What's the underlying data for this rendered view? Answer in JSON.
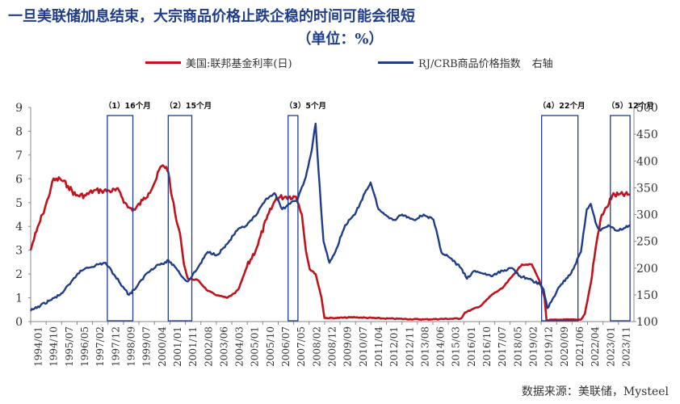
{
  "chart_data": {
    "type": "line",
    "title": "一旦美联储加息结束，大宗商品价格止跌企稳的时间可能会很短",
    "subtitle": "（单位：%）",
    "source": "数据来源：美联储，Mysteel",
    "x_tick_labels": [
      "1994/01",
      "1994/10",
      "1995/07",
      "1996/05",
      "1997/02",
      "1997/12",
      "1998/09",
      "1999/07",
      "2000/04",
      "2001/01",
      "2001/11",
      "2002/08",
      "2003/06",
      "2004/03",
      "2005/01",
      "2005/10",
      "2006/07",
      "2007/05",
      "2008/02",
      "2008/12",
      "2009/09",
      "2010/07",
      "2011/04",
      "2012/01",
      "2012/11",
      "2013/08",
      "2014/06",
      "2015/03",
      "2016/01",
      "2016/10",
      "2017/07",
      "2018/05",
      "2019/02",
      "2019/12",
      "2020/09",
      "2021/06",
      "2022/04",
      "2023/01",
      "2023/11"
    ],
    "y_left": {
      "label": "",
      "ylim": [
        0,
        9
      ],
      "ticks": [
        0,
        1,
        2,
        3,
        4,
        5,
        6,
        7,
        8,
        9
      ]
    },
    "y_right": {
      "label": "右轴",
      "ylim": [
        100,
        500
      ],
      "ticks": [
        100,
        150,
        200,
        250,
        300,
        350,
        400,
        450,
        500
      ]
    },
    "grid": false,
    "legend_position": "top",
    "series": [
      {
        "name": "美国:联邦基金利率(日)",
        "color": "#c0131c",
        "axis": "left",
        "x": [
          1994.0,
          1994.1,
          1994.3,
          1994.6,
          1994.9,
          1995.1,
          1995.5,
          1995.9,
          1996.3,
          1996.8,
          1997.2,
          1997.6,
          1998.0,
          1998.5,
          1998.8,
          1998.95,
          1999.3,
          1999.7,
          2000.0,
          2000.4,
          2000.6,
          2000.9,
          2001.0,
          2001.2,
          2001.4,
          2001.6,
          2001.8,
          2002.0,
          2002.5,
          2003.0,
          2003.5,
          2004.0,
          2004.4,
          2004.6,
          2005.0,
          2005.5,
          2006.0,
          2006.5,
          2007.0,
          2007.5,
          2007.65,
          2007.8,
          2008.0,
          2008.2,
          2008.5,
          2008.8,
          2008.95,
          2009.5,
          2010.5,
          2012.0,
          2014.0,
          2015.9,
          2016.1,
          2016.9,
          2017.5,
          2018.0,
          2018.5,
          2019.0,
          2019.5,
          2019.7,
          2019.95,
          2020.15,
          2020.25,
          2021.0,
          2022.0,
          2022.2,
          2022.5,
          2022.75,
          2023.0,
          2023.3,
          2023.6,
          2023.9,
          2024.5
        ],
        "y": [
          3.0,
          3.3,
          3.8,
          4.5,
          5.2,
          5.9,
          6.0,
          5.7,
          5.3,
          5.3,
          5.5,
          5.5,
          5.5,
          5.5,
          5.0,
          4.8,
          4.7,
          5.1,
          5.4,
          6.0,
          6.5,
          6.5,
          6.3,
          5.2,
          4.3,
          3.7,
          2.4,
          1.8,
          1.75,
          1.3,
          1.1,
          1.0,
          1.2,
          1.4,
          2.3,
          3.1,
          4.3,
          5.2,
          5.25,
          5.25,
          4.9,
          4.5,
          3.0,
          2.2,
          2.0,
          1.0,
          0.15,
          0.15,
          0.18,
          0.13,
          0.09,
          0.13,
          0.38,
          0.66,
          1.15,
          1.4,
          1.9,
          2.4,
          2.4,
          2.05,
          1.6,
          1.0,
          0.06,
          0.08,
          0.08,
          0.33,
          1.6,
          3.1,
          4.3,
          4.8,
          5.3,
          5.33,
          5.33
        ]
      },
      {
        "name": "RJ/CRB商品价格指数",
        "color": "#1f3d8a",
        "axis": "right",
        "x": [
          1994.0,
          1994.5,
          1995.0,
          1995.5,
          1996.0,
          1996.4,
          1996.8,
          1997.3,
          1997.8,
          1998.3,
          1998.7,
          1999.0,
          1999.4,
          1999.9,
          2000.4,
          2000.9,
          2001.0,
          2001.4,
          2001.8,
          2002.0,
          2002.5,
          2003.0,
          2003.5,
          2004.0,
          2004.5,
          2005.0,
          2005.5,
          2006.0,
          2006.4,
          2006.8,
          2007.2,
          2007.6,
          2008.0,
          2008.3,
          2008.5,
          2008.65,
          2008.9,
          2009.2,
          2009.5,
          2010.0,
          2010.5,
          2011.0,
          2011.3,
          2011.7,
          2012.0,
          2012.5,
          2012.9,
          2013.5,
          2014.0,
          2014.5,
          2014.9,
          2015.3,
          2015.9,
          2016.2,
          2016.6,
          2017.0,
          2017.5,
          2018.0,
          2018.5,
          2018.9,
          2019.3,
          2019.9,
          2020.1,
          2020.3,
          2020.6,
          2021.0,
          2021.5,
          2022.0,
          2022.3,
          2022.5,
          2022.8,
          2023.0,
          2023.4,
          2023.8,
          2024.2,
          2024.5
        ],
        "y": [
          120,
          130,
          140,
          150,
          170,
          190,
          200,
          205,
          210,
          185,
          165,
          150,
          165,
          190,
          205,
          210,
          215,
          200,
          180,
          175,
          200,
          230,
          225,
          245,
          270,
          280,
          300,
          330,
          340,
          310,
          320,
          330,
          370,
          420,
          470,
          380,
          250,
          210,
          230,
          280,
          300,
          340,
          360,
          310,
          300,
          290,
          300,
          290,
          300,
          290,
          230,
          220,
          200,
          180,
          195,
          190,
          185,
          195,
          200,
          185,
          180,
          170,
          160,
          125,
          145,
          170,
          190,
          230,
          310,
          320,
          280,
          270,
          280,
          270,
          275,
          280
        ]
      }
    ],
    "annotations": [
      {
        "label": "（1）16个月",
        "x0": 1997.9,
        "x1": 1999.2
      },
      {
        "label": "（2）15个月",
        "x0": 2001.0,
        "x1": 2002.2
      },
      {
        "label": "（3）5个月",
        "x0": 2007.1,
        "x1": 2007.6
      },
      {
        "label": "（4）22个月",
        "x0": 2020.0,
        "x1": 2021.85
      },
      {
        "label": "（5）12个月",
        "x0": 2023.5,
        "x1": 2024.5
      }
    ]
  }
}
